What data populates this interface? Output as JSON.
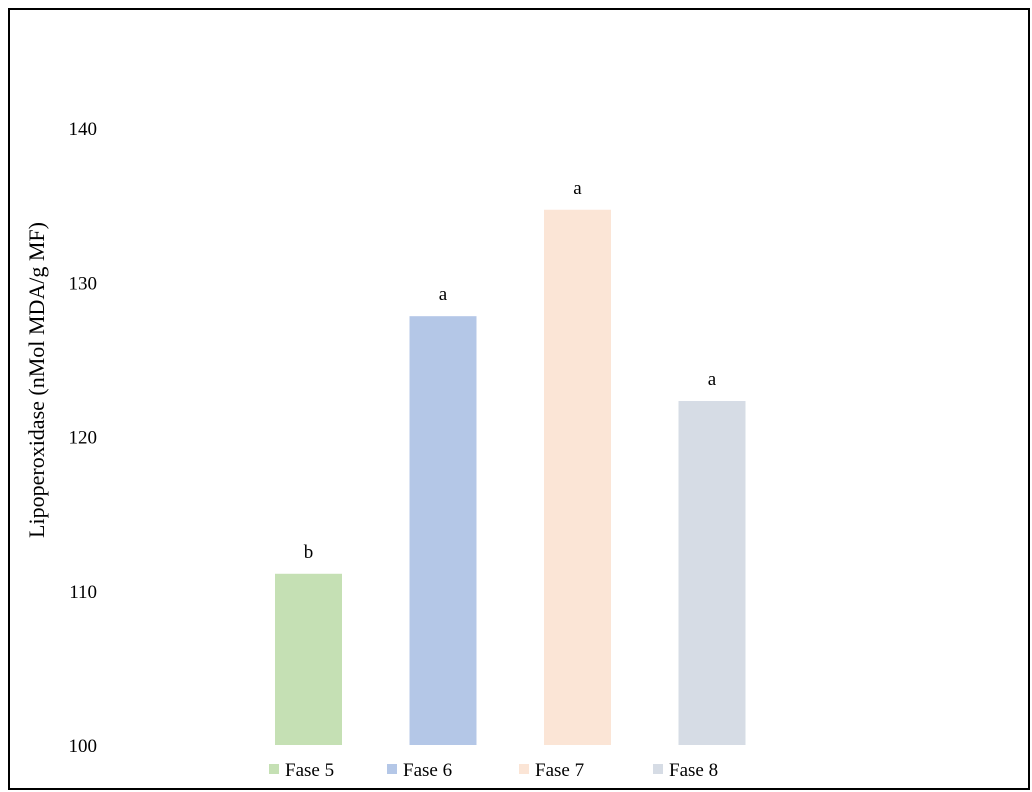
{
  "chart_data": {
    "type": "bar",
    "title": "",
    "xlabel": "",
    "ylabel": "Lipoperoxidase (nMol MDA/g MF)",
    "ylim": [
      100,
      140
    ],
    "yticks": [
      100,
      110,
      120,
      130,
      140
    ],
    "grid": false,
    "legend_position": "bottom",
    "categories": [
      "Fase 5",
      "Fase 6",
      "Fase 7",
      "Fase 8"
    ],
    "values": [
      111.1,
      127.8,
      134.7,
      122.3
    ],
    "significance_labels": [
      "b",
      "a",
      "a",
      "a"
    ],
    "colors": [
      "#c5e0b4",
      "#b4c7e7",
      "#fbe5d6",
      "#d6dce5"
    ]
  }
}
